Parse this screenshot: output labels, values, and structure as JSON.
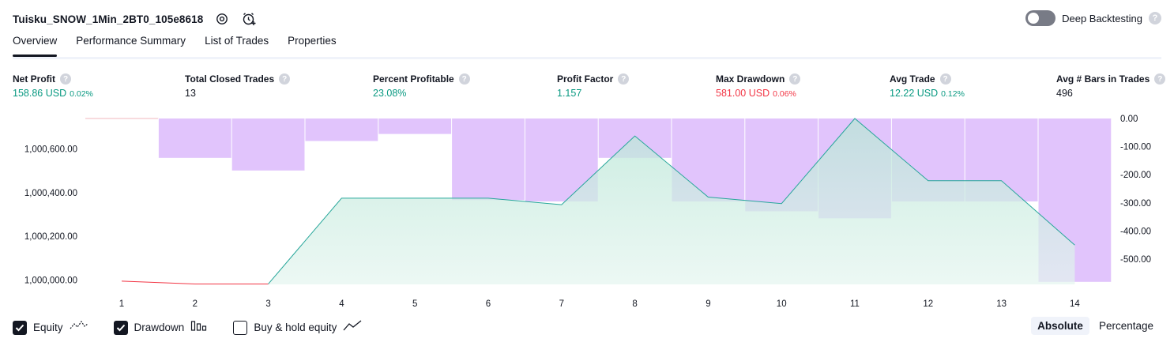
{
  "header": {
    "strategy_name": "Tuisku_SNOW_1Min_2BT0_105e8618",
    "settings_icon": "gear-icon",
    "alert_icon": "alarm-clock-plus-icon",
    "deep_backtesting_label": "Deep Backtesting",
    "deep_backtesting_enabled": false,
    "help_glyph": "?"
  },
  "tabs": [
    {
      "label": "Overview",
      "active": true
    },
    {
      "label": "Performance Summary",
      "active": false
    },
    {
      "label": "List of Trades",
      "active": false
    },
    {
      "label": "Properties",
      "active": false
    }
  ],
  "metrics": [
    {
      "label": "Net Profit",
      "value": "158.86 USD",
      "pct": "0.02%",
      "color": "#089981"
    },
    {
      "label": "Total Closed Trades",
      "value": "13",
      "pct": "",
      "color": "#131722"
    },
    {
      "label": "Percent Profitable",
      "value": "23.08%",
      "pct": "",
      "color": "#089981"
    },
    {
      "label": "Profit Factor",
      "value": "1.157",
      "pct": "",
      "color": "#089981"
    },
    {
      "label": "Max Drawdown",
      "value": "581.00 USD",
      "pct": "0.06%",
      "color": "#f23645"
    },
    {
      "label": "Avg Trade",
      "value": "12.22 USD",
      "pct": "0.12%",
      "color": "#089981"
    },
    {
      "label": "Avg # Bars in Trades",
      "value": "496",
      "pct": "",
      "color": "#131722"
    }
  ],
  "chart_data": {
    "type": "line",
    "x": [
      1,
      2,
      3,
      4,
      5,
      6,
      7,
      8,
      9,
      10,
      11,
      12,
      13,
      14
    ],
    "x_ticks": [
      "1",
      "2",
      "3",
      "4",
      "5",
      "6",
      "7",
      "8",
      "9",
      "10",
      "11",
      "12",
      "13",
      "14"
    ],
    "series": [
      {
        "name": "Equity",
        "axis": "left",
        "values": [
          999995,
          999982,
          999982,
          1000375,
          1000375,
          1000375,
          1000345,
          1000660,
          1000380,
          1000350,
          1000740,
          1000455,
          1000455,
          1000160
        ]
      },
      {
        "name": "Drawdown",
        "axis": "right",
        "type": "bar",
        "values": [
          0,
          -140,
          -185,
          -80,
          -55,
          -290,
          -295,
          -140,
          -295,
          -330,
          -355,
          -295,
          -295,
          -581
        ]
      }
    ],
    "y_left": {
      "ticks": [
        "1,000,000.00",
        "1,000,200.00",
        "1,000,400.00",
        "1,000,600.00"
      ],
      "ylim": [
        999980,
        1000740
      ]
    },
    "y_right": {
      "ticks": [
        "0.00",
        "-100.00",
        "-200.00",
        "-300.00",
        "-400.00",
        "-500.00"
      ],
      "ylim": [
        -590,
        0
      ]
    },
    "colors": {
      "equity_line_up": "#26a69a",
      "equity_line_down": "#f23645",
      "equity_fill": "#e4f5ef",
      "drawdown_fill": "#e1c4fc",
      "drawdown_zero_line": "#f0b7be",
      "grid_line": "#ffffff"
    },
    "legend_placement": "bottom-left"
  },
  "legend": [
    {
      "label": "Equity",
      "checked": true,
      "icon": "equity-line-icon"
    },
    {
      "label": "Drawdown",
      "checked": true,
      "icon": "drawdown-bars-icon"
    },
    {
      "label": "Buy & hold equity",
      "checked": false,
      "icon": "buy-hold-line-icon"
    }
  ],
  "view_mode": {
    "options": [
      "Absolute",
      "Percentage"
    ],
    "selected": "Absolute"
  }
}
